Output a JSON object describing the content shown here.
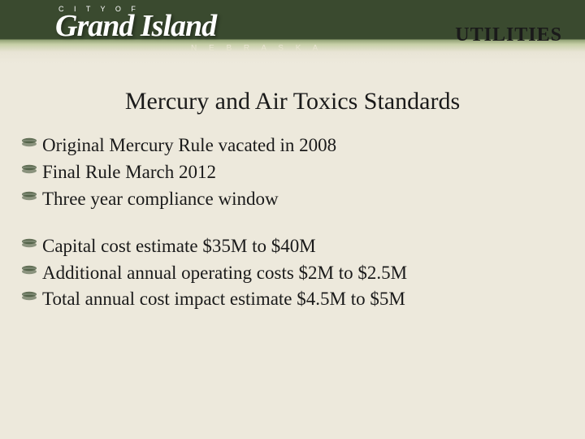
{
  "header": {
    "pretitle": "C I T Y   O F",
    "brand": "Grand Island",
    "subtitle": "N E B R A S K A",
    "department": "UTILITIES"
  },
  "slide": {
    "title": "Mercury and Air Toxics Standards",
    "title_fontsize": 30,
    "title_color": "#1a1a1a",
    "body_fontsize": 23,
    "body_color": "#1a1a1a",
    "bullet_icon_color": "#4a5a40",
    "background_color": "#ede9dc"
  },
  "groups": [
    {
      "items": [
        "Original Mercury Rule vacated in 2008",
        "Final Rule March 2012",
        "Three year compliance window"
      ]
    },
    {
      "items": [
        "Capital cost estimate $35M to $40M",
        "Additional annual operating costs $2M to $2.5M",
        "Total annual cost impact estimate $4.5M to $5M"
      ]
    }
  ]
}
